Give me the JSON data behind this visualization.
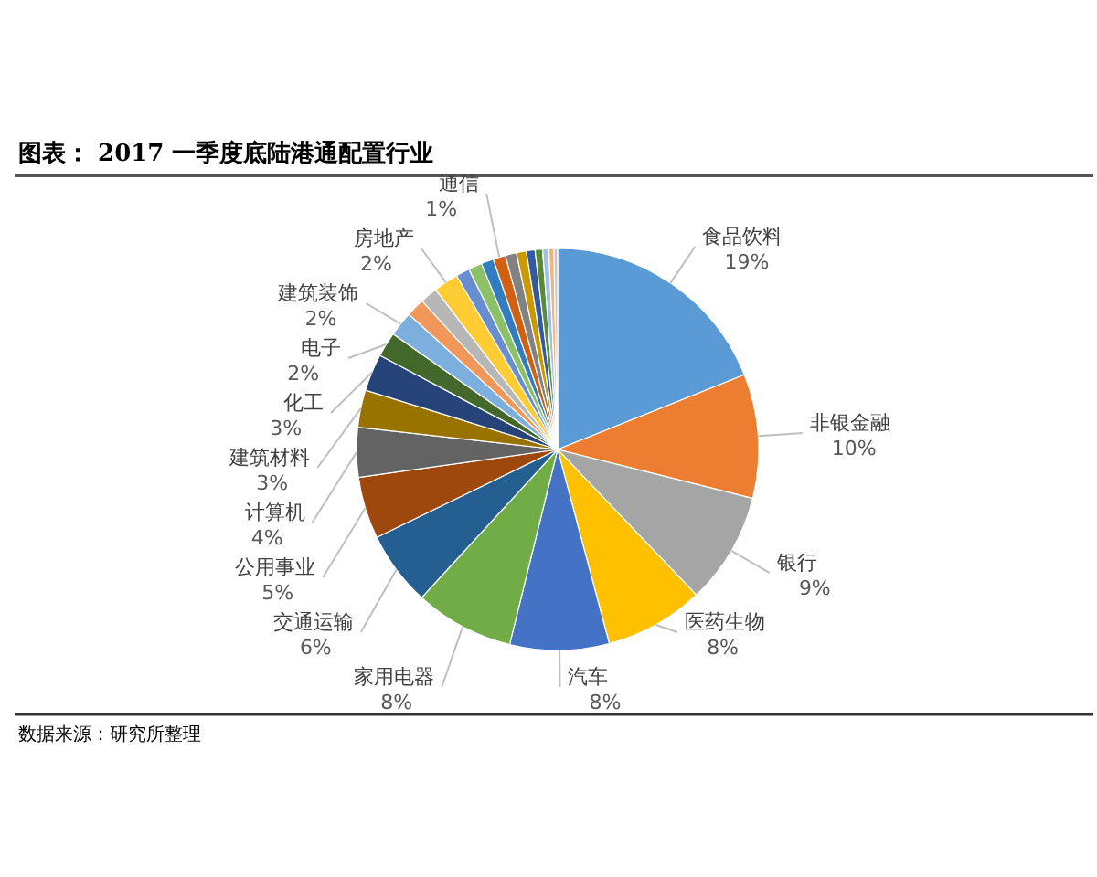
{
  "chart_data": {
    "type": "pie",
    "title": "图表： 2017 一季度底陆港通配置行业",
    "categories": [
      "食品饮料",
      "非银金融",
      "银行",
      "医药生物",
      "汽车",
      "家用电器",
      "交通运输",
      "公用事业",
      "计算机",
      "建筑材料",
      "化工",
      "电子",
      "建筑装饰",
      null,
      null,
      "房地产",
      null,
      null,
      null,
      "通信",
      null,
      null,
      null,
      null,
      null,
      null,
      null
    ],
    "values": [
      19,
      10,
      9,
      8,
      8,
      8,
      6,
      5,
      4,
      3,
      3,
      2,
      2,
      1.5,
      1.4,
      2,
      1.1,
      1.1,
      1.0,
      1,
      0.9,
      0.8,
      0.7,
      0.6,
      0.5,
      0.4,
      0.3
    ],
    "value_labels": [
      "19%",
      "10%",
      "9%",
      "8%",
      "8%",
      "8%",
      "6%",
      "5%",
      "4%",
      "3%",
      "3%",
      "2%",
      "2%",
      null,
      null,
      "2%",
      null,
      null,
      null,
      "1%",
      null,
      null,
      null,
      null,
      null,
      null,
      null
    ],
    "colors": [
      "#5b9bd5",
      "#ed7d31",
      "#a5a5a5",
      "#ffc000",
      "#4472c4",
      "#70ad47",
      "#255e91",
      "#9e480e",
      "#636363",
      "#997300",
      "#264478",
      "#43682b",
      "#7cafdd",
      "#f1975a",
      "#b7b7b7",
      "#ffcd33",
      "#698ed0",
      "#8cc168",
      "#327dc2",
      "#d26012",
      "#828282",
      "#cc9a00",
      "#335aa1",
      "#5a8a39",
      "#9dc3e6",
      "#f4b183",
      "#c9c9c9"
    ],
    "annotations": [
      "数据来源：研究所整理"
    ]
  }
}
